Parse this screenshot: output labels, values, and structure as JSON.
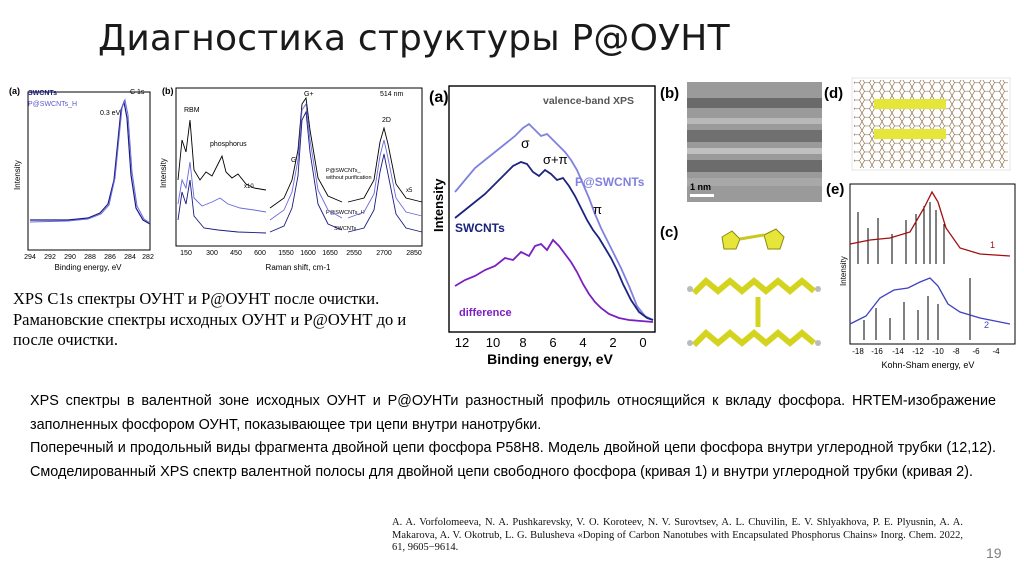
{
  "title": "Диагностика структуры P@ОУНТ",
  "left_panel": {
    "a": {
      "label": "(a)",
      "legend": [
        "SWCNTs",
        "P@SWCNTs_H"
      ],
      "tag": "C 1s",
      "annotation": "0.3 eV",
      "ylabel": "Intensity",
      "xlabel": "Binding energy, eV",
      "ticks": [
        "294",
        "292",
        "290",
        "288",
        "286",
        "284",
        "282"
      ]
    },
    "b": {
      "label": "(b)",
      "tag": "514 nm",
      "peaks": [
        "RBM",
        "phosphorus",
        "G",
        "G+",
        "2D"
      ],
      "scale_labels": [
        "x10",
        "x5"
      ],
      "curve_labels": [
        "P@SWCNTs_",
        "without purification",
        "P@SWCNTs_H",
        "SWCNTs"
      ],
      "ylabel": "Intensity",
      "xlabel": "Raman shift, cm-1",
      "ticks": [
        "150",
        "300",
        "450",
        "600",
        "1550",
        "1600",
        "1650",
        "2550",
        "2700",
        "2850"
      ]
    },
    "caption": "XPS C1s спектры ОУНТ и P@ОУНТ после очистки. Рамановские спектры исходных ОУНТ и P@ОУНТ до и после очистки."
  },
  "center_panel": {
    "label": "(a)",
    "title": "valence-band XPS",
    "series_labels": [
      "P@SWCNTs",
      "SWCNTs",
      "difference"
    ],
    "greek": [
      "σ",
      "σ+π",
      "π"
    ],
    "ylabel": "Intensity",
    "xlabel": "Binding energy, eV",
    "ticks": [
      "12",
      "10",
      "8",
      "6",
      "4",
      "2",
      "0"
    ],
    "colors": {
      "p_swcnt": "#8080e0",
      "swcnt": "#1a237e",
      "difference": "#7b1fc0"
    }
  },
  "right_panels": {
    "b": {
      "label": "(b)",
      "scale": "1 nm"
    },
    "c": {
      "label": "(c)"
    },
    "d": {
      "label": "(d)"
    },
    "e": {
      "label": "(e)",
      "curve_ids": [
        "1",
        "2"
      ],
      "ylabel": "Intensity",
      "xlabel": "Kohn-Sham energy, eV",
      "ticks": [
        "-18",
        "-16",
        "-14",
        "-12",
        "-10",
        "-8",
        "-6",
        "-4"
      ]
    }
  },
  "body": [
    "XPS спектры в валентной зоне исходных ОУНТ и P@ОУНТи разностный профиль относящийся к вкладу фосфора. HRTEM-изображение заполненных фосфором ОУНТ, показывающее три цепи внутри нанотрубки.",
    "Поперечный и продольный виды фрагмента двойной цепи фосфора P58H8. Модель двойной цепи фосфора внутри углеродной трубки (12,12). Смоделированный XPS спектр валентной полосы для двойной цепи свободного фосфора (кривая 1) и внутри углеродной трубки (кривая 2)."
  ],
  "reference": "A. A. Vorfolomeeva, N. A. Pushkarevsky, V. O. Koroteev, N. V. Surovtsev, A. L. Chuvilin, E. V. Shlyakhova, P. E. Plyusnin, A. A. Makarova, A. V. Okotrub, L. G. Bulusheva «Doping of Carbon Nanotubes with Encapsulated Phosphorus Chains» Inorg. Chem. 2022, 61, 9605−9614.",
  "page_number": "19"
}
